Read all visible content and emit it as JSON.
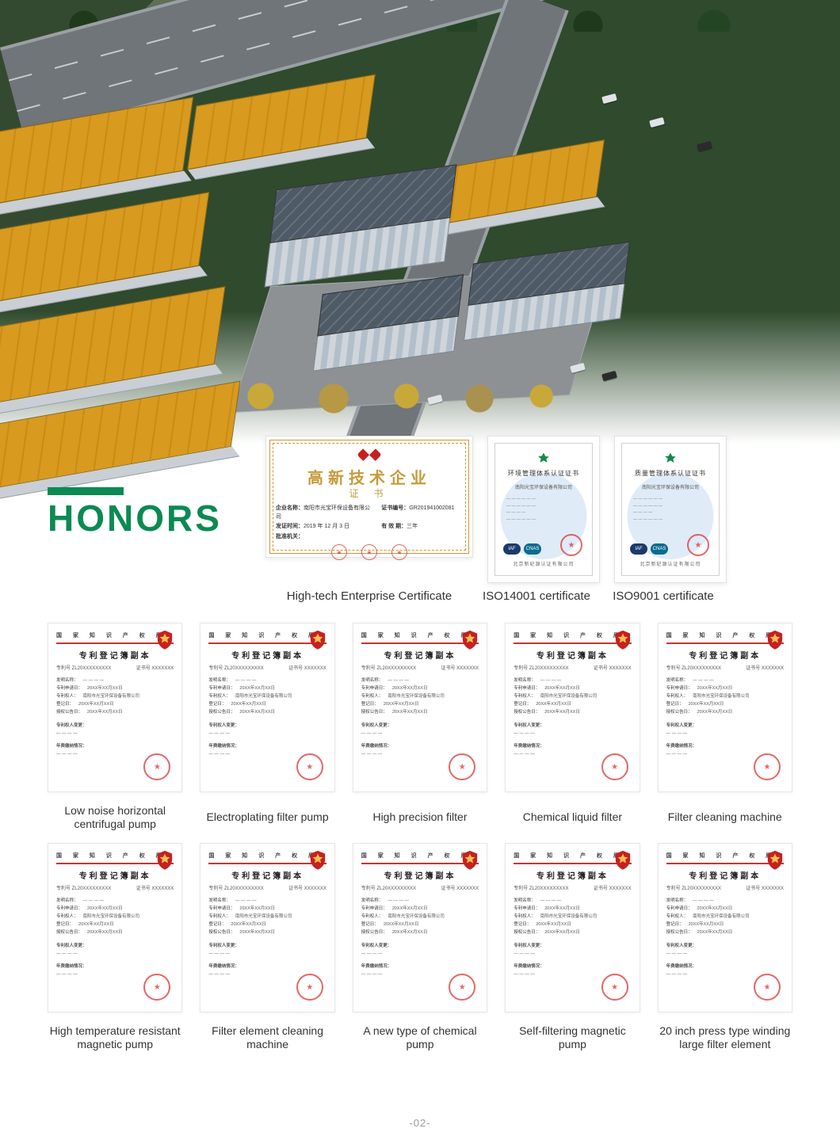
{
  "palette": {
    "brand_green": "#0b8a53",
    "roof_yellow": "#d89a1f",
    "roof_yellow_dark": "#c98b14",
    "office_roof": "#4e5a66",
    "road": "#6f7578",
    "road_edge": "#9aa0a3",
    "tree_dark": "#2f4a2d",
    "autumn_tree": "#c9a83a",
    "seal_red": "#d33",
    "cert_gold": "#c79a3a",
    "text": "#333333",
    "caption": "#333333",
    "page_no": "#9a9a9a",
    "card_border": "#e6e6e6"
  },
  "heading": "HONORS",
  "hitech": {
    "title": "高新技术企业",
    "sub": "证 书",
    "fields": {
      "company_k": "企业名称：",
      "company_v": "南阳市光宝环保设备有限公司",
      "date_k": "发证时间：",
      "date_v": "2019 年 12 月 3 日",
      "issuer_k": "批准机关：",
      "issuer_v": "",
      "certno_k": "证书编号：",
      "certno_v": "GR201941002081",
      "valid_k": "有 效 期：",
      "valid_v": "三年"
    },
    "caption": "High-tech Enterprise Certificate"
  },
  "iso14001": {
    "headline": "环境管理体系认证证书",
    "company": "南阳光宝环保设备有限公司",
    "footer": "北京新纪源认证有限公司",
    "badges": [
      "IAF",
      "CNAS"
    ],
    "caption": "ISO14001 certificate"
  },
  "iso9001": {
    "headline": "质量管理体系认证证书",
    "company": "南阳光宝环保设备有限公司",
    "footer": "北京新纪源认证有限公司",
    "badges": [
      "IAF",
      "CNAS"
    ],
    "caption": "ISO9001 certificate"
  },
  "patent_common": {
    "header": "国 家 知 识 产 权 局",
    "title": "专利登记簿副本",
    "left_no_k": "专利号",
    "left_no_v": "ZL20XXXXXXXXX",
    "right_no_k": "证书号",
    "right_no_v": "XXXXXXX",
    "fields": [
      [
        "发明名称",
        ""
      ],
      [
        "专利申请日",
        "20XX年XX月XX日"
      ],
      [
        "专利权人",
        "南阳市光宝环保设备有限公司"
      ],
      [
        "登记日",
        "20XX年XX月XX日"
      ],
      [
        "授权公告日",
        "20XX年XX月XX日"
      ]
    ],
    "note": "专利权人变更：",
    "status": "年费缴纳情况："
  },
  "patents": [
    {
      "caption": "Low noise horizontal centrifugal pump"
    },
    {
      "caption": "Electroplating filter pump"
    },
    {
      "caption": "High precision filter"
    },
    {
      "caption": "Chemical liquid filter"
    },
    {
      "caption": "Filter cleaning machine"
    },
    {
      "caption": "High temperature resistant magnetic pump"
    },
    {
      "caption": "Filter element cleaning machine"
    },
    {
      "caption": "A new type of chemical pump"
    },
    {
      "caption": "Self-filtering magnetic pump"
    },
    {
      "caption": "20 inch press type winding large filter element"
    }
  ],
  "page_no": "-02-"
}
